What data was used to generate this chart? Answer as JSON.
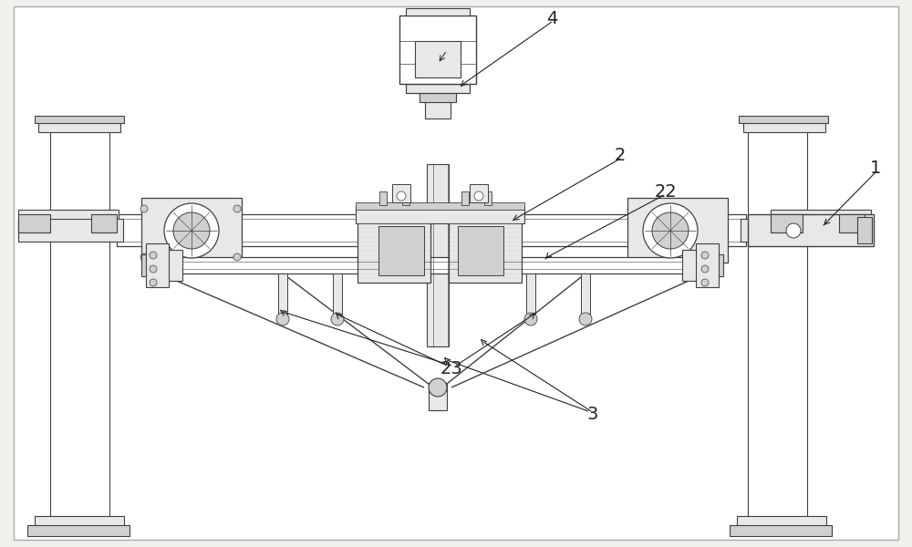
{
  "bg_color": "#ffffff",
  "outer_bg": "#f0f0ec",
  "line_color": "#404040",
  "dark_color": "#222222",
  "light_gray": "#c0c0c0",
  "mid_gray": "#888888",
  "fill_light": "#e8e8e8",
  "fill_mid": "#d0d0d0",
  "fill_dark": "#b0b0b0",
  "white": "#ffffff",
  "figsize": [
    10.0,
    6.0
  ],
  "dpi": 100
}
